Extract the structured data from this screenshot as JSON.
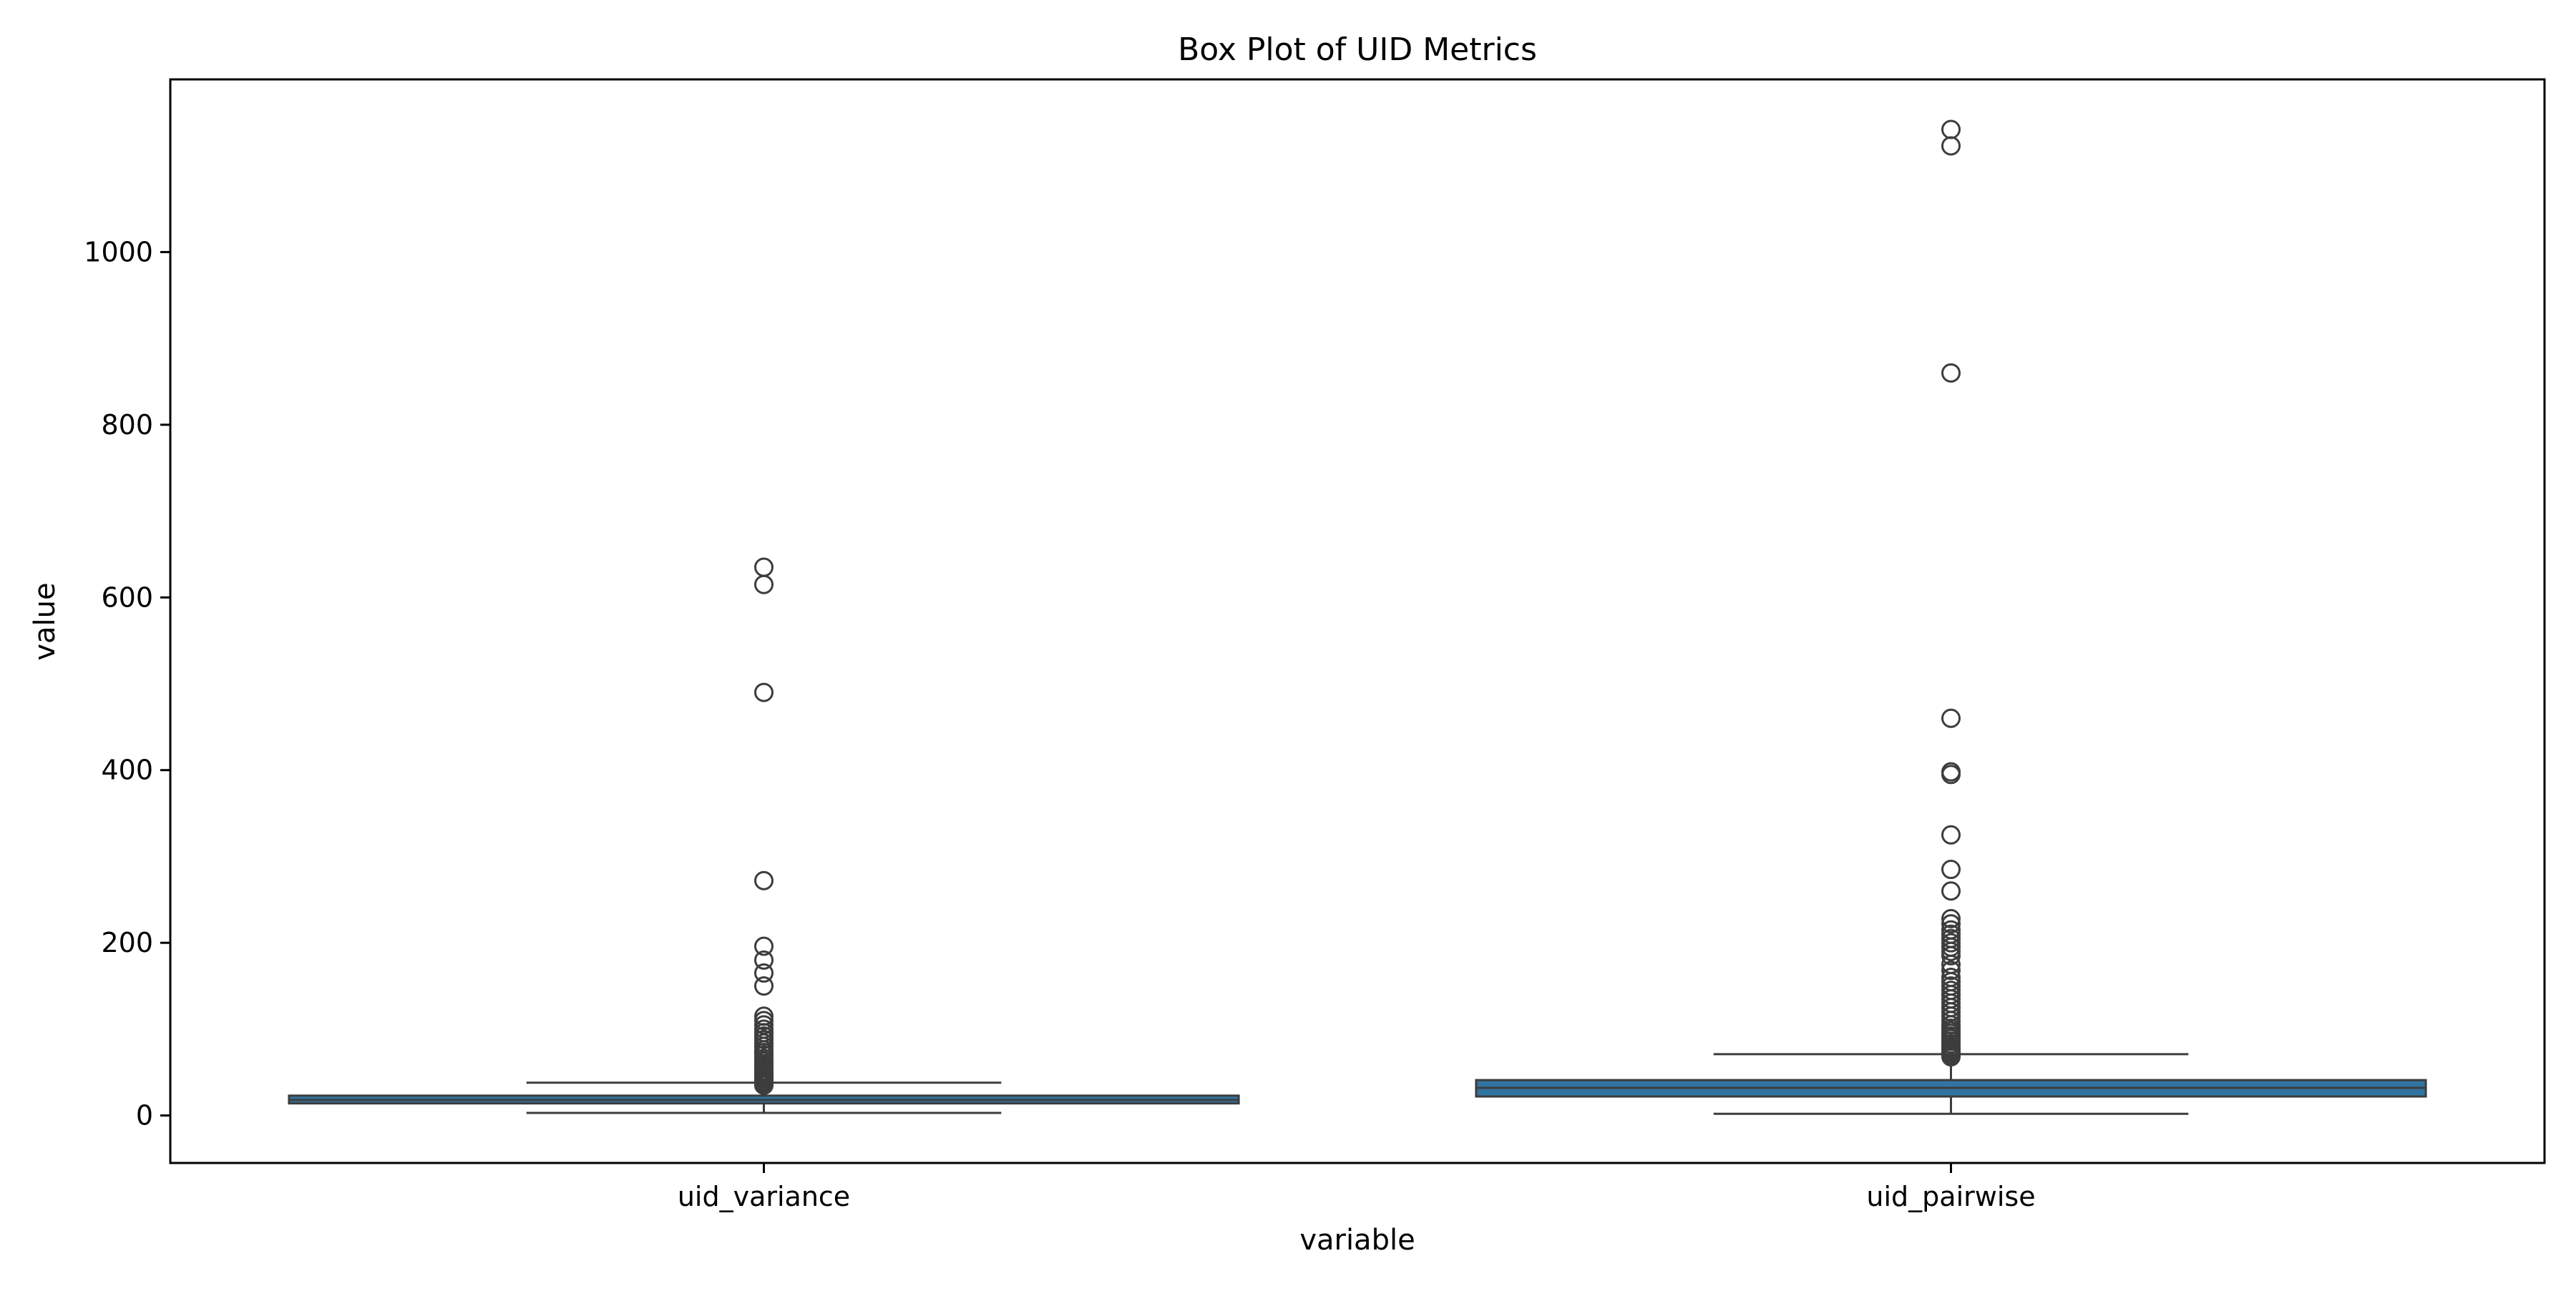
{
  "chart_data": {
    "type": "box",
    "title": "Box Plot of UID Metrics",
    "xlabel": "variable",
    "ylabel": "value",
    "ylim": [
      -55,
      1200
    ],
    "yticks": [
      0,
      200,
      400,
      600,
      800,
      1000
    ],
    "grid": false,
    "legend": "none",
    "box_color": "#3274a1",
    "edge_color": "#3d3d3d",
    "categories": [
      "uid_variance",
      "uid_pairwise"
    ],
    "series": [
      {
        "category": "uid_variance",
        "whisker_low": 3,
        "q1": 14,
        "median": 18,
        "q3": 23,
        "whisker_high": 38,
        "outliers": [
          35,
          37,
          39,
          40,
          42,
          44,
          46,
          48,
          50,
          52,
          55,
          58,
          60,
          63,
          66,
          70,
          73,
          76,
          80,
          84,
          88,
          92,
          96,
          100,
          105,
          110,
          115,
          150,
          165,
          180,
          196,
          272,
          490,
          615,
          635
        ]
      },
      {
        "category": "uid_pairwise",
        "whisker_low": 2,
        "q1": 22,
        "median": 32,
        "q3": 41,
        "whisker_high": 71,
        "outliers": [
          68,
          70,
          72,
          74,
          76,
          78,
          80,
          83,
          86,
          89,
          92,
          95,
          98,
          101,
          105,
          110,
          115,
          120,
          125,
          130,
          135,
          140,
          145,
          150,
          155,
          160,
          168,
          175,
          185,
          190,
          195,
          200,
          205,
          210,
          215,
          222,
          228,
          260,
          285,
          325,
          395,
          398,
          460,
          860,
          1123,
          1142
        ]
      }
    ]
  }
}
